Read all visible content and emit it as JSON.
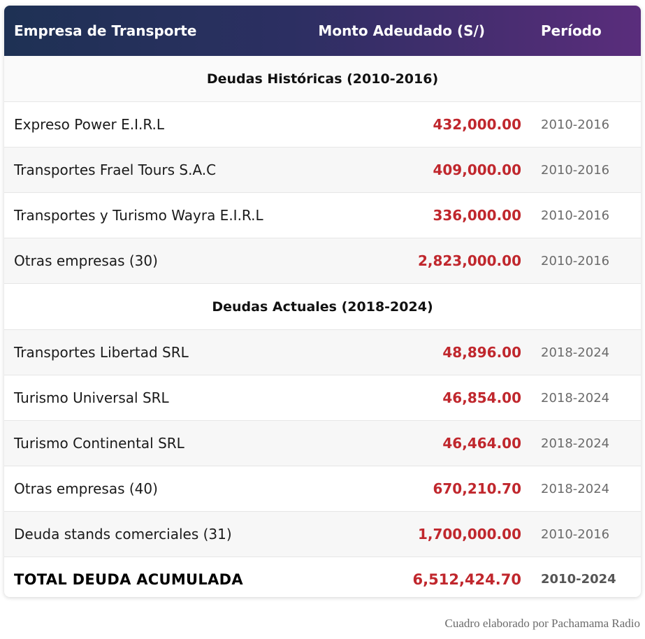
{
  "table": {
    "headers": {
      "company": "Empresa de Transporte",
      "amount": "Monto Adeudado (S/)",
      "period": "Período"
    },
    "sections": [
      {
        "title": "Deudas Históricas (2010-2016)",
        "rows": [
          {
            "company": "Expreso Power E.I.R.L",
            "amount": "432,000.00",
            "period": "2010-2016"
          },
          {
            "company": "Transportes Frael Tours S.A.C",
            "amount": "409,000.00",
            "period": "2010-2016"
          },
          {
            "company": "Transportes y Turismo Wayra E.I.R.L",
            "amount": "336,000.00",
            "period": "2010-2016"
          },
          {
            "company": "Otras empresas (30)",
            "amount": "2,823,000.00",
            "period": "2010-2016"
          }
        ]
      },
      {
        "title": "Deudas Actuales (2018-2024)",
        "rows": [
          {
            "company": "Transportes Libertad SRL",
            "amount": "48,896.00",
            "period": "2018-2024"
          },
          {
            "company": "Turismo Universal SRL",
            "amount": "46,854.00",
            "period": "2018-2024"
          },
          {
            "company": "Turismo Continental SRL",
            "amount": "46,464.00",
            "period": "2018-2024"
          },
          {
            "company": "Otras empresas (40)",
            "amount": "670,210.70",
            "period": "2018-2024"
          },
          {
            "company": "Deuda stands comerciales (31)",
            "amount": "1,700,000.00",
            "period": "2010-2016"
          }
        ]
      }
    ],
    "total": {
      "company": "TOTAL DEUDA ACUMULADA",
      "amount": "6,512,424.70",
      "period": "2010-2024"
    }
  },
  "source": "Cuadro elaborado por Pachamama Radio",
  "colors": {
    "header_gradient_start": "#1e3154",
    "header_gradient_end": "#5a2d7c",
    "amount": "#c0272d",
    "period": "#6b6b6b"
  }
}
